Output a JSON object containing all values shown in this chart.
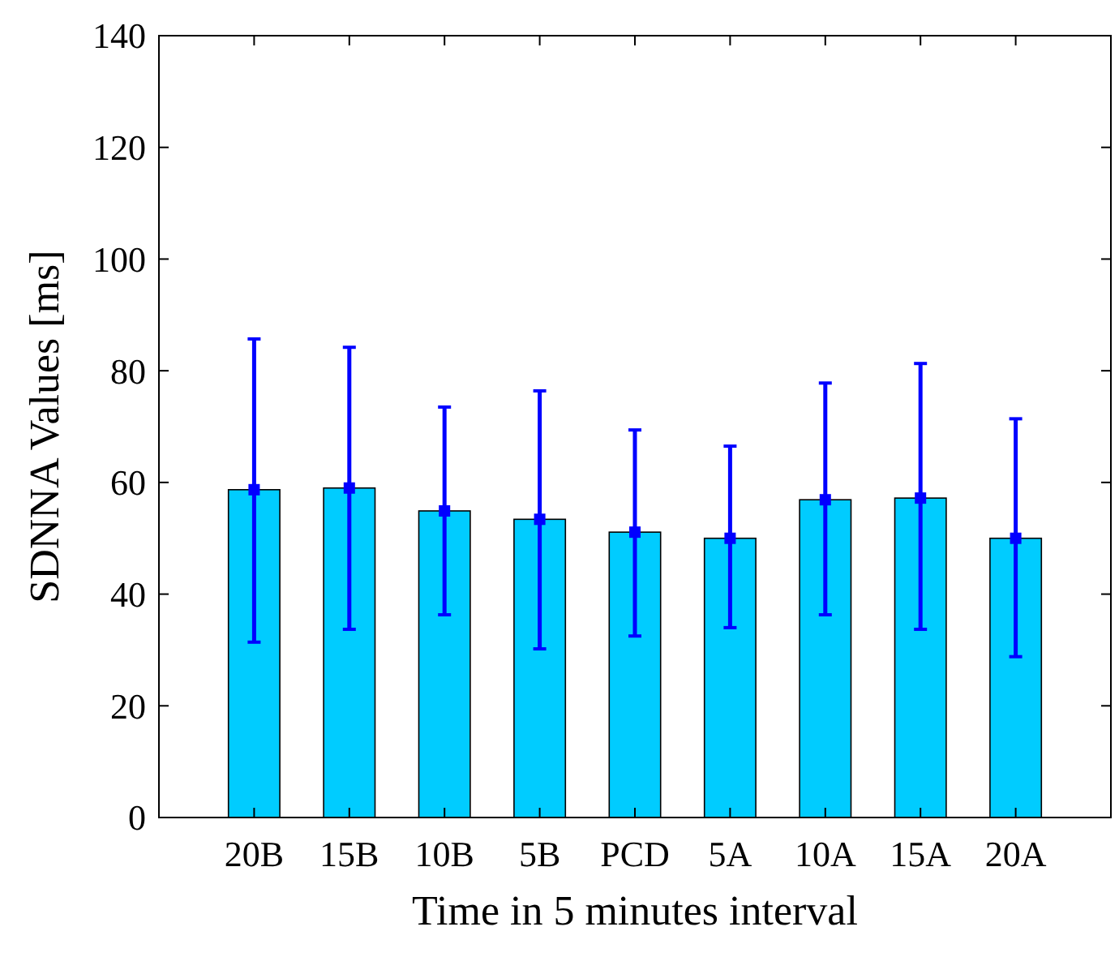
{
  "chart_data": {
    "type": "bar",
    "xlabel": "Time in 5 minutes interval",
    "ylabel": "SDNNA Values [ms]",
    "categories": [
      "20B",
      "15B",
      "10B",
      "5B",
      "PCD",
      "5A",
      "10A",
      "15A",
      "20A"
    ],
    "series": [
      {
        "color": "#00ccff",
        "values": [
          58.7,
          59,
          54.9,
          53.4,
          51.1,
          50,
          56.9,
          57.2,
          50
        ],
        "errors": [
          [
            31.4,
            85.7
          ],
          [
            33.7,
            84.2
          ],
          [
            36.3,
            73.5
          ],
          [
            30.2,
            76.4
          ],
          [
            32.5,
            69.4
          ],
          [
            34,
            66.5
          ],
          [
            36.3,
            77.8
          ],
          [
            33.7,
            81.3
          ],
          [
            28.8,
            71.4
          ]
        ]
      },
      {
        "type": "scatter",
        "color": "#0000ff",
        "marker": "square",
        "x": [
          "20B",
          "15B",
          "10B",
          "5B",
          "PCD",
          "5A",
          "10A",
          "15A",
          "20A"
        ],
        "values": [
          58.7,
          59,
          54.9,
          53.4,
          51.1,
          50,
          56.9,
          57.2,
          50
        ]
      }
    ],
    "ylim": [
      0,
      140
    ],
    "yticks": [
      0,
      20,
      40,
      60,
      80,
      100,
      120,
      140
    ],
    "grid": false
  }
}
